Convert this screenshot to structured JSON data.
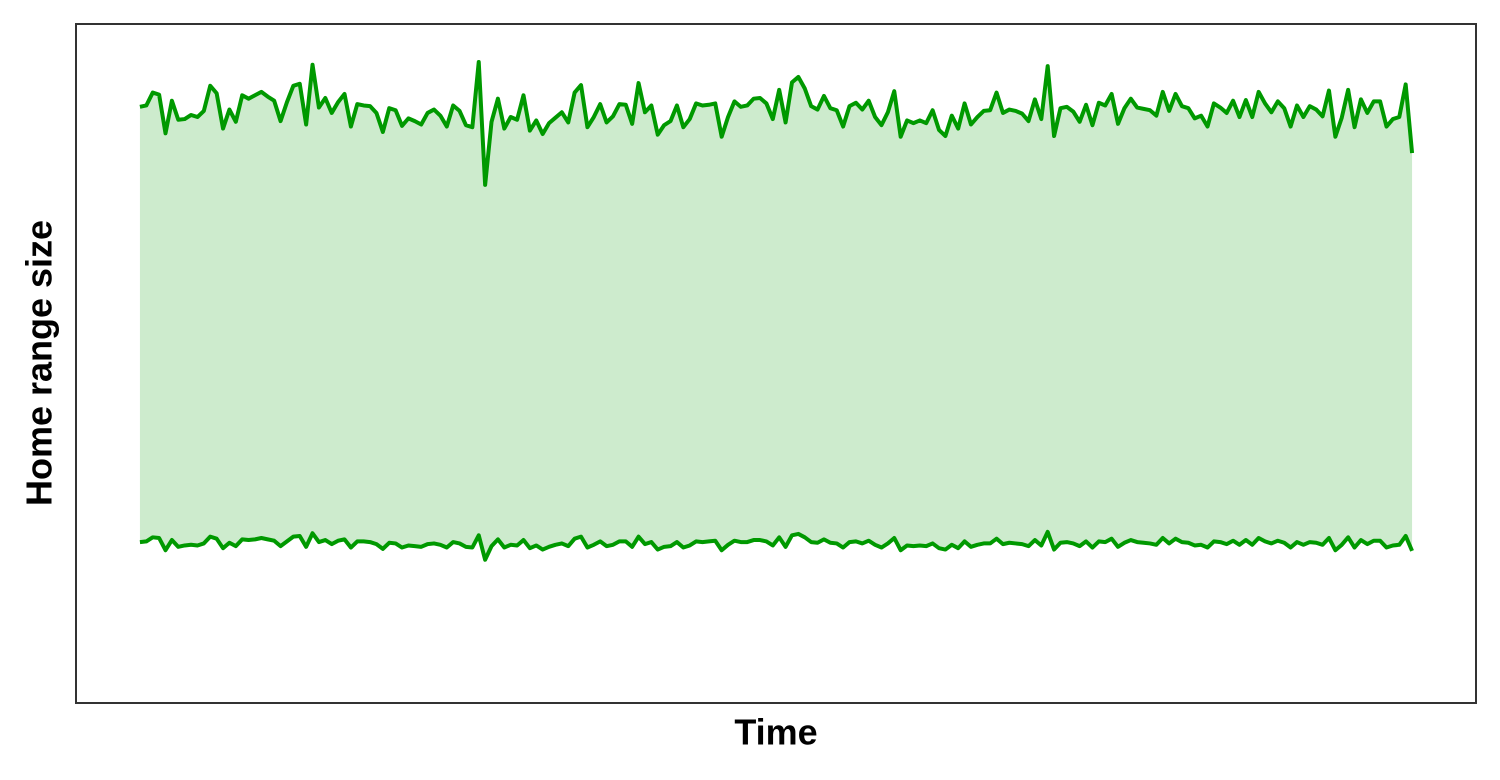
{
  "chart_data": {
    "type": "band",
    "x_label": "Time",
    "y_label": "Home range size",
    "color": "#009900",
    "fill": "#cdebcd",
    "xlim": [
      -10,
      209
    ],
    "ylim": [
      0,
      100
    ],
    "upper": [
      87.8,
      88.0,
      89.9,
      89.6,
      83.9,
      88.7,
      85.9,
      86.0,
      86.6,
      86.3,
      87.2,
      90.9,
      89.8,
      84.6,
      87.4,
      85.6,
      89.5,
      89.0,
      89.5,
      90.0,
      89.3,
      88.7,
      85.7,
      88.5,
      90.9,
      91.2,
      85.2,
      94.0,
      87.7,
      89.1,
      86.9,
      88.5,
      89.7,
      84.9,
      88.2,
      88.0,
      87.9,
      86.9,
      84.1,
      87.6,
      87.3,
      85.0,
      86.1,
      85.7,
      85.2,
      86.9,
      87.4,
      86.5,
      84.9,
      88.0,
      87.2,
      85.1,
      84.8,
      94.4,
      76.3,
      85.6,
      89.0,
      84.6,
      86.3,
      85.9,
      89.5,
      84.3,
      85.8,
      83.8,
      85.4,
      86.2,
      87.0,
      85.5,
      89.9,
      91.0,
      84.8,
      86.3,
      88.2,
      85.5,
      86.4,
      88.2,
      88.1,
      85.3,
      91.3,
      87.0,
      88.0,
      83.7,
      85.1,
      85.7,
      88.0,
      84.8,
      86.0,
      88.3,
      88.0,
      88.1,
      88.3,
      83.4,
      86.3,
      88.6,
      87.8,
      88.0,
      89.0,
      89.1,
      88.3,
      86.0,
      90.3,
      85.5,
      91.4,
      92.2,
      90.5,
      87.9,
      87.4,
      89.4,
      87.6,
      87.3,
      84.9,
      87.9,
      88.4,
      87.4,
      88.7,
      86.3,
      85.1,
      87.0,
      90.1,
      83.4,
      85.8,
      85.4,
      85.8,
      85.4,
      87.3,
      84.4,
      83.5,
      86.5,
      84.6,
      88.3,
      85.2,
      86.3,
      87.2,
      87.3,
      89.9,
      86.9,
      87.4,
      87.2,
      86.8,
      85.7,
      88.9,
      86.0,
      93.8,
      83.5,
      87.6,
      87.8,
      87.1,
      85.6,
      88.1,
      85.1,
      88.4,
      88.0,
      89.7,
      85.3,
      87.6,
      89.0,
      87.7,
      87.5,
      87.3,
      86.5,
      90.0,
      87.2,
      89.7,
      87.9,
      87.6,
      86.1,
      86.5,
      84.9,
      88.3,
      87.7,
      86.9,
      88.7,
      86.3,
      88.8,
      86.3,
      90.0,
      88.3,
      87.0,
      88.6,
      87.6,
      84.9,
      88.0,
      86.3,
      87.9,
      87.4,
      86.4,
      90.2,
      83.4,
      86.2,
      90.3,
      84.8,
      88.9,
      86.9,
      88.6,
      88.6,
      84.9,
      86.0,
      86.3,
      91.1,
      81.0
    ],
    "lower": [
      23.7,
      23.8,
      24.4,
      24.3,
      22.5,
      24.0,
      23.0,
      23.2,
      23.3,
      23.2,
      23.5,
      24.5,
      24.2,
      22.8,
      23.6,
      23.1,
      24.1,
      24.0,
      24.1,
      24.3,
      24.1,
      23.9,
      23.1,
      23.8,
      24.5,
      24.6,
      23.0,
      25.0,
      23.7,
      24.0,
      23.4,
      23.9,
      24.1,
      22.9,
      23.8,
      23.8,
      23.7,
      23.4,
      22.7,
      23.6,
      23.5,
      22.9,
      23.2,
      23.1,
      23.0,
      23.4,
      23.5,
      23.3,
      22.9,
      23.7,
      23.5,
      23.0,
      22.9,
      24.7,
      21.1,
      23.1,
      24.1,
      22.9,
      23.3,
      23.2,
      24.0,
      22.8,
      23.2,
      22.6,
      23.0,
      23.3,
      23.5,
      23.1,
      24.2,
      24.5,
      22.9,
      23.3,
      23.8,
      23.1,
      23.3,
      23.8,
      23.8,
      23.0,
      24.5,
      23.4,
      23.7,
      22.6,
      23.0,
      23.1,
      23.7,
      22.9,
      23.2,
      23.8,
      23.7,
      23.8,
      23.9,
      22.5,
      23.3,
      23.9,
      23.7,
      23.7,
      24.0,
      24.0,
      23.8,
      23.2,
      24.4,
      23.0,
      24.7,
      24.9,
      24.4,
      23.7,
      23.6,
      24.1,
      23.6,
      23.5,
      22.9,
      23.7,
      23.8,
      23.5,
      23.9,
      23.3,
      22.9,
      23.5,
      24.3,
      22.5,
      23.2,
      23.1,
      23.2,
      23.1,
      23.5,
      22.8,
      22.6,
      23.3,
      22.8,
      23.8,
      23.0,
      23.3,
      23.5,
      23.5,
      24.2,
      23.4,
      23.6,
      23.5,
      23.4,
      23.1,
      24.0,
      23.2,
      25.2,
      22.6,
      23.6,
      23.7,
      23.5,
      23.1,
      23.8,
      22.9,
      23.8,
      23.7,
      24.2,
      23.0,
      23.6,
      24.0,
      23.7,
      23.6,
      23.5,
      23.3,
      24.3,
      23.5,
      24.2,
      23.7,
      23.6,
      23.2,
      23.3,
      22.9,
      23.8,
      23.7,
      23.4,
      23.9,
      23.3,
      24.0,
      23.3,
      24.3,
      23.8,
      23.5,
      23.9,
      23.6,
      22.9,
      23.7,
      23.3,
      23.7,
      23.6,
      23.3,
      24.3,
      22.5,
      23.3,
      24.4,
      22.9,
      24.0,
      23.4,
      23.9,
      23.9,
      22.9,
      23.2,
      23.3,
      24.6,
      22.4
    ]
  }
}
